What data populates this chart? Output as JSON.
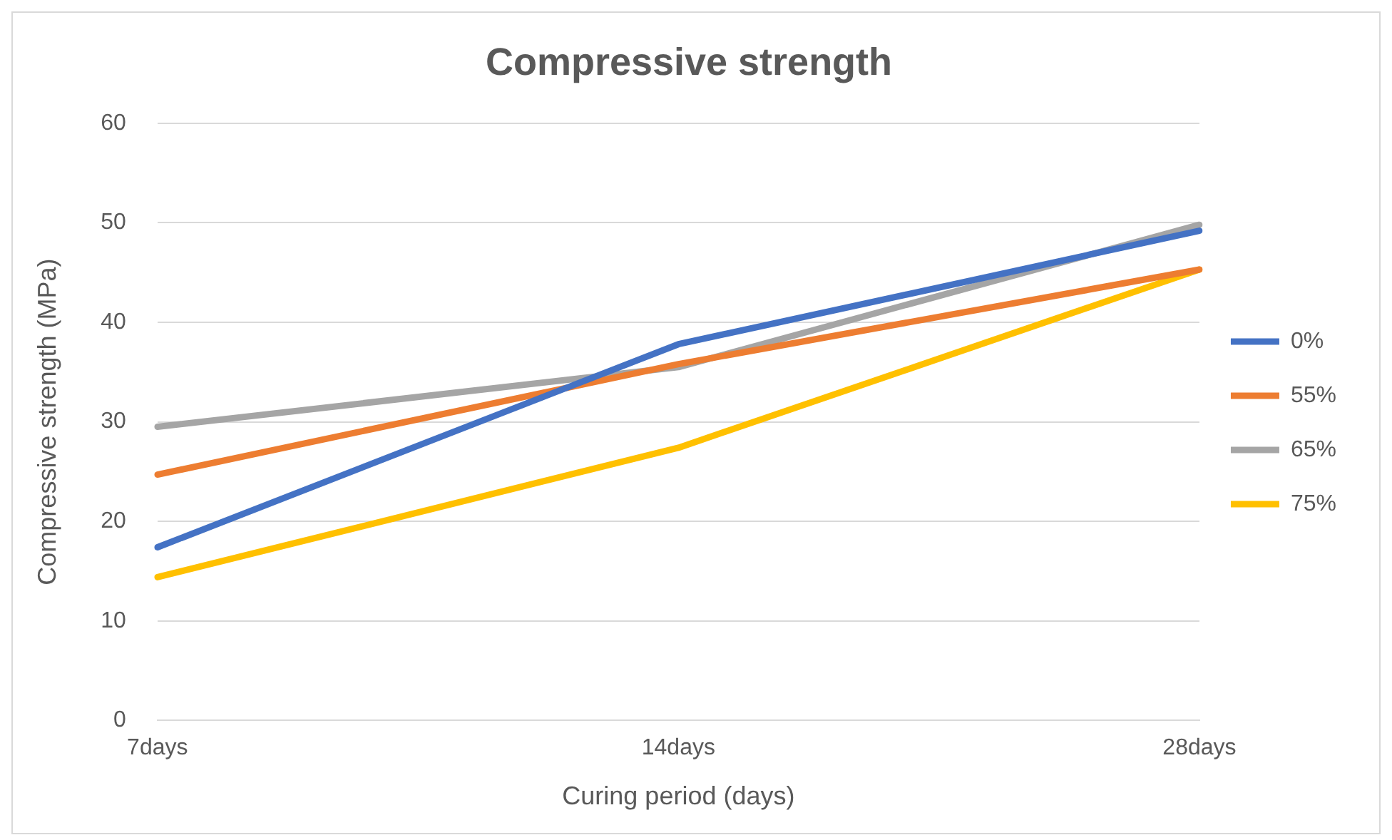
{
  "chart_data": {
    "type": "line",
    "title": "Compressive strength",
    "xlabel": "Curing period (days)",
    "ylabel": "Compressive strength (MPa)",
    "categories": [
      "7days",
      "14days",
      "28days"
    ],
    "series": [
      {
        "name": "0%",
        "color": "#4472c4",
        "values": [
          17.4,
          37.8,
          49.2
        ]
      },
      {
        "name": "55%",
        "color": "#ed7d31",
        "values": [
          24.7,
          35.8,
          45.3
        ]
      },
      {
        "name": "65%",
        "color": "#a5a5a5",
        "values": [
          29.5,
          35.5,
          49.8
        ]
      },
      {
        "name": "75%",
        "color": "#ffc000",
        "values": [
          14.4,
          27.4,
          45.3
        ]
      }
    ],
    "ylim": [
      0,
      60
    ],
    "yticks": [
      0,
      10,
      20,
      30,
      40,
      50,
      60
    ],
    "grid": "y",
    "legend": "right",
    "marker": "none"
  }
}
